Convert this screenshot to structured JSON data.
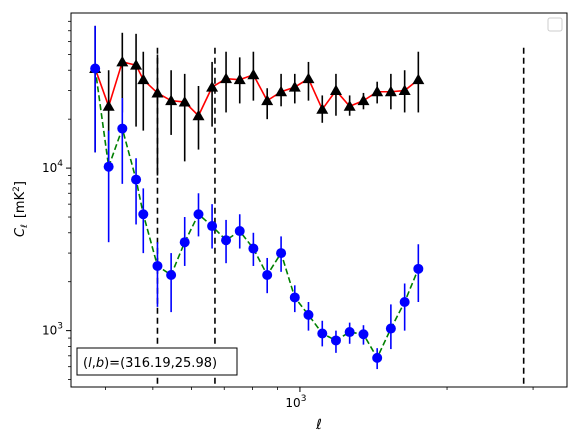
{
  "chart_data": {
    "type": "scatter",
    "title": "",
    "xlabel": "ℓ",
    "ylabel_main": "C",
    "ylabel_sub": "ℓ",
    "ylabel_unit_open": "[mK",
    "ylabel_unit_sup": "2",
    "ylabel_unit_close": "]",
    "xscale": "log",
    "yscale": "log",
    "xlim": [
      340,
      3520
    ],
    "ylim": [
      450,
      90000
    ],
    "grid": false,
    "legend": "top-right",
    "x_major_ticks": [
      1000
    ],
    "x_major_tick_labels": [
      {
        "base": "10",
        "exp": "3"
      }
    ],
    "y_major_ticks": [
      1000,
      10000
    ],
    "y_major_tick_labels": [
      {
        "base": "10",
        "exp": "3"
      },
      {
        "base": "10",
        "exp": "4"
      }
    ],
    "annotation": {
      "text": "(l, b)=(316.19,25.98)",
      "prefix": "(",
      "l": "l",
      "sep": ",",
      "b": "b",
      "suffix": ")=(316.19,25.98)"
    },
    "vlines": [
      {
        "x": 511,
        "y_top": 55000
      },
      {
        "x": 670,
        "y_top": 55000
      },
      {
        "x": 2870,
        "y_top": 55000
      }
    ],
    "series": [
      {
        "color": "#ff0000",
        "marker": "triangle",
        "linestyle": "solid",
        "points": [
          {
            "x": 381,
            "y": 41000,
            "lo": 12500,
            "hi": 75000
          },
          {
            "x": 406,
            "y": 24000,
            "lo": 10500,
            "hi": 40000
          },
          {
            "x": 433,
            "y": 45000,
            "lo": 22000,
            "hi": 68000
          },
          {
            "x": 462,
            "y": 43000,
            "lo": 18000,
            "hi": 67000
          },
          {
            "x": 478,
            "y": 35000,
            "lo": 17000,
            "hi": 52000
          },
          {
            "x": 511,
            "y": 29000,
            "lo": 9000,
            "hi": 50000
          },
          {
            "x": 545,
            "y": 26000,
            "lo": 16000,
            "hi": 40000
          },
          {
            "x": 581,
            "y": 25500,
            "lo": 11000,
            "hi": 38000
          },
          {
            "x": 620,
            "y": 21000,
            "lo": 13000,
            "hi": 32000
          },
          {
            "x": 661,
            "y": 31500,
            "lo": 18000,
            "hi": 45000
          },
          {
            "x": 706,
            "y": 35500,
            "lo": 22000,
            "hi": 52000
          },
          {
            "x": 753,
            "y": 35000,
            "lo": 25000,
            "hi": 48000
          },
          {
            "x": 803,
            "y": 37500,
            "lo": 26000,
            "hi": 52000
          },
          {
            "x": 857,
            "y": 26000,
            "lo": 20000,
            "hi": 31000
          },
          {
            "x": 915,
            "y": 29500,
            "lo": 24000,
            "hi": 38000
          },
          {
            "x": 976,
            "y": 31500,
            "lo": 25000,
            "hi": 38000
          },
          {
            "x": 1041,
            "y": 35500,
            "lo": 26000,
            "hi": 45000
          },
          {
            "x": 1111,
            "y": 23000,
            "lo": 19000,
            "hi": 28000
          },
          {
            "x": 1185,
            "y": 30000,
            "lo": 21000,
            "hi": 38000
          },
          {
            "x": 1264,
            "y": 24000,
            "lo": 21000,
            "hi": 28000
          },
          {
            "x": 1349,
            "y": 26000,
            "lo": 23000,
            "hi": 29000
          },
          {
            "x": 1439,
            "y": 29500,
            "lo": 25000,
            "hi": 34000
          },
          {
            "x": 1535,
            "y": 29500,
            "lo": 23000,
            "hi": 38000
          },
          {
            "x": 1638,
            "y": 30000,
            "lo": 22000,
            "hi": 40000
          },
          {
            "x": 1747,
            "y": 35000,
            "lo": 22000,
            "hi": 52000
          }
        ]
      },
      {
        "color": "#0000ff",
        "line_color": "#008000",
        "marker": "circle",
        "linestyle": "dashed",
        "points": [
          {
            "x": 381,
            "y": 41000,
            "lo": 12500,
            "hi": 75000
          },
          {
            "x": 406,
            "y": 10200,
            "lo": 3500,
            "hi": 17000
          },
          {
            "x": 433,
            "y": 17500,
            "lo": 8000,
            "hi": 27000
          },
          {
            "x": 462,
            "y": 8500,
            "lo": 4500,
            "hi": 11500
          },
          {
            "x": 478,
            "y": 5200,
            "lo": 3000,
            "hi": 7500
          },
          {
            "x": 511,
            "y": 2500,
            "lo": 1400,
            "hi": 3500
          },
          {
            "x": 545,
            "y": 2200,
            "lo": 1300,
            "hi": 3000
          },
          {
            "x": 581,
            "y": 3500,
            "lo": 2500,
            "hi": 5000
          },
          {
            "x": 620,
            "y": 5200,
            "lo": 3800,
            "hi": 7000
          },
          {
            "x": 661,
            "y": 4400,
            "lo": 3200,
            "hi": 6000
          },
          {
            "x": 706,
            "y": 3600,
            "lo": 2600,
            "hi": 4800
          },
          {
            "x": 753,
            "y": 4100,
            "lo": 3200,
            "hi": 5200
          },
          {
            "x": 803,
            "y": 3200,
            "lo": 2500,
            "hi": 4000
          },
          {
            "x": 857,
            "y": 2200,
            "lo": 1700,
            "hi": 2800
          },
          {
            "x": 915,
            "y": 3000,
            "lo": 2300,
            "hi": 3800
          },
          {
            "x": 976,
            "y": 1600,
            "lo": 1300,
            "hi": 1900
          },
          {
            "x": 1041,
            "y": 1250,
            "lo": 1000,
            "hi": 1500
          },
          {
            "x": 1111,
            "y": 960,
            "lo": 800,
            "hi": 1150
          },
          {
            "x": 1185,
            "y": 870,
            "lo": 730,
            "hi": 1000
          },
          {
            "x": 1264,
            "y": 980,
            "lo": 830,
            "hi": 1120
          },
          {
            "x": 1349,
            "y": 950,
            "lo": 820,
            "hi": 1080
          },
          {
            "x": 1439,
            "y": 680,
            "lo": 580,
            "hi": 780
          },
          {
            "x": 1535,
            "y": 1030,
            "lo": 770,
            "hi": 1450
          },
          {
            "x": 1638,
            "y": 1500,
            "lo": 1000,
            "hi": 1950
          },
          {
            "x": 1747,
            "y": 2400,
            "lo": 1500,
            "hi": 3400
          }
        ]
      }
    ]
  }
}
